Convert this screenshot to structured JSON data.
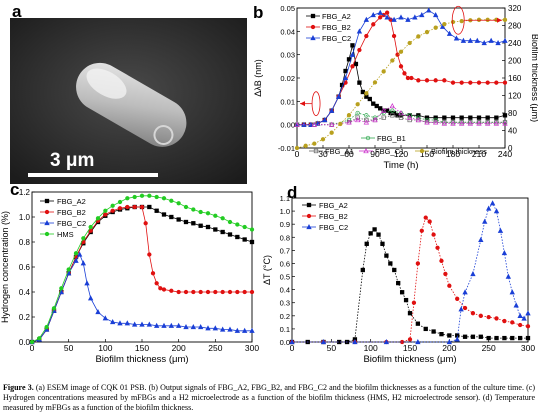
{
  "panels": {
    "a": {
      "label": "a",
      "scale_bar_text": "3 μm"
    },
    "b": {
      "label": "b"
    },
    "c": {
      "label": "c"
    },
    "d": {
      "label": "d"
    }
  },
  "caption": {
    "lead": "Figure 3.",
    "text": " (a) ESEM image of CQK 01 PSB. (b) Output signals of FBG_A2, FBG_B2, and FBG_C2 and the biofilm thicknesses as a function of the culture time. (c) Hydrogen concentrations measured by mFBGs and a H2 microelectrode as a function of the biofilm thickness (HMS, H2 microelectrode sensor). (d) Temperature measured by mFBGs as a function of the biofilm thickness."
  },
  "chart_data": [
    {
      "panel": "b",
      "type": "line",
      "xlabel": "Time (h)",
      "ylabel": "ΔλB (nm)",
      "y2label": "Biofilm thickness (μm)",
      "xlim": [
        0,
        240
      ],
      "ylim": [
        -0.01,
        0.05
      ],
      "y2lim": [
        0,
        320
      ],
      "xticks": [
        0,
        30,
        60,
        90,
        120,
        150,
        180,
        210,
        240
      ],
      "yticks": [
        -0.01,
        0.0,
        0.01,
        0.02,
        0.03,
        0.04,
        0.05
      ],
      "y2ticks": [
        0,
        40,
        80,
        120,
        160,
        200,
        240,
        280,
        320
      ],
      "ytick_labels": [
        "-0.01",
        "0.00",
        "0.01",
        "0.02",
        "0.03",
        "0.04",
        "0.05"
      ],
      "legend_top": [
        "FBG_A2",
        "FBG_B2",
        "FBG_C2"
      ],
      "legend_bottom": [
        "FBG_B1",
        "FBG_A1",
        "FBG_C1",
        "Biofilm thickness"
      ],
      "colors": {
        "A2": "#000000",
        "B2": "#e01010",
        "C2": "#1a3fd6",
        "B1": "#2fa84f",
        "A1": "#666666",
        "C1": "#cc33cc",
        "thick": "#b8a01e"
      },
      "series": [
        {
          "name": "FBG_A2",
          "axis": "left",
          "color": "#000000",
          "marker": "square",
          "x": [
            0,
            8,
            16,
            24,
            32,
            40,
            48,
            52,
            56,
            60,
            64,
            68,
            72,
            76,
            80,
            84,
            88,
            92,
            96,
            100,
            104,
            108,
            112,
            116,
            120,
            130,
            140,
            150,
            160,
            170,
            180,
            190,
            200,
            210,
            220,
            230,
            240
          ],
          "y": [
            0,
            0,
            0,
            0.0005,
            0.002,
            0.006,
            0.012,
            0.017,
            0.023,
            0.028,
            0.034,
            0.026,
            0.018,
            0.014,
            0.012,
            0.011,
            0.009,
            0.008,
            0.007,
            0.006,
            0.006,
            0.005,
            0.005,
            0.004,
            0.004,
            0.004,
            0.004,
            0.003,
            0.003,
            0.003,
            0.003,
            0.003,
            0.003,
            0.003,
            0.003,
            0.003,
            0.004
          ]
        },
        {
          "name": "FBG_B2",
          "axis": "left",
          "color": "#e01010",
          "marker": "circle",
          "x": [
            0,
            8,
            16,
            24,
            32,
            40,
            48,
            56,
            64,
            72,
            80,
            88,
            96,
            100,
            104,
            108,
            112,
            116,
            120,
            124,
            128,
            132,
            140,
            150,
            160,
            170,
            180,
            190,
            200,
            210,
            220,
            230,
            240
          ],
          "y": [
            0,
            0,
            0,
            0.0005,
            0.002,
            0.006,
            0.012,
            0.018,
            0.025,
            0.032,
            0.038,
            0.043,
            0.046,
            0.047,
            0.048,
            0.045,
            0.038,
            0.03,
            0.025,
            0.022,
            0.02,
            0.02,
            0.019,
            0.019,
            0.019,
            0.019,
            0.018,
            0.018,
            0.018,
            0.018,
            0.018,
            0.018,
            0.018
          ]
        },
        {
          "name": "FBG_C2",
          "axis": "left",
          "color": "#1a3fd6",
          "marker": "triangle",
          "x": [
            0,
            8,
            16,
            24,
            32,
            40,
            48,
            56,
            64,
            72,
            80,
            88,
            96,
            104,
            112,
            120,
            128,
            136,
            144,
            152,
            160,
            168,
            176,
            184,
            192,
            200,
            208,
            216,
            224,
            232,
            240
          ],
          "y": [
            0,
            0,
            0,
            0.0005,
            0.002,
            0.006,
            0.012,
            0.02,
            0.03,
            0.04,
            0.045,
            0.047,
            0.048,
            0.046,
            0.045,
            0.046,
            0.045,
            0.046,
            0.047,
            0.049,
            0.047,
            0.042,
            0.039,
            0.037,
            0.036,
            0.036,
            0.036,
            0.035,
            0.036,
            0.035,
            0.036
          ]
        },
        {
          "name": "FBG_B1",
          "axis": "left",
          "color": "#2fa84f",
          "marker": "open-circle",
          "x": [
            0,
            20,
            40,
            60,
            70,
            80,
            90,
            100,
            110,
            120,
            130,
            140,
            150,
            160,
            170,
            180,
            190,
            200,
            210,
            220,
            230,
            240
          ],
          "y": [
            0,
            0,
            0,
            0.002,
            0.005,
            0.004,
            0.003,
            0.005,
            0.006,
            0.005,
            0.004,
            0.003,
            0.002,
            0.002,
            0.001,
            0.001,
            0.001,
            0.001,
            0.001,
            0.001,
            0.001,
            0.001
          ]
        },
        {
          "name": "FBG_A1",
          "axis": "left",
          "color": "#666666",
          "marker": "open-square",
          "x": [
            0,
            20,
            40,
            60,
            70,
            80,
            90,
            100,
            110,
            120,
            130,
            140,
            150,
            160,
            170,
            180,
            190,
            200,
            210,
            220,
            230,
            240
          ],
          "y": [
            0,
            0,
            0,
            0.001,
            0.003,
            0.002,
            0.002,
            0.003,
            0.004,
            0.003,
            0.002,
            0.002,
            0.001,
            0.001,
            0.001,
            0.001,
            0.001,
            0.001,
            0.001,
            0.001,
            0.001,
            0.001
          ]
        },
        {
          "name": "FBG_C1",
          "axis": "left",
          "color": "#cc33cc",
          "marker": "open-triangle",
          "x": [
            0,
            20,
            40,
            60,
            70,
            80,
            90,
            100,
            110,
            120,
            130,
            140,
            150,
            160,
            170,
            180,
            190,
            200,
            210,
            220,
            230,
            240
          ],
          "y": [
            0,
            0,
            0,
            0.001,
            0.002,
            0.001,
            0.002,
            0.006,
            0.008,
            0.005,
            0.003,
            0.002,
            0.001,
            0.001,
            0.0005,
            0.0005,
            0.0005,
            0.0005,
            0.0005,
            0.0005,
            0.0005,
            0.0005
          ]
        },
        {
          "name": "Biofilm thickness",
          "axis": "right",
          "color": "#b8a01e",
          "marker": "circle",
          "x": [
            0,
            10,
            20,
            30,
            40,
            50,
            60,
            70,
            80,
            90,
            100,
            110,
            120,
            130,
            140,
            150,
            160,
            170,
            180,
            190,
            200,
            210,
            220,
            230,
            240
          ],
          "y": [
            0,
            5,
            10,
            20,
            35,
            55,
            75,
            100,
            125,
            150,
            175,
            200,
            220,
            240,
            255,
            265,
            275,
            283,
            288,
            290,
            292,
            293,
            293,
            293,
            293
          ]
        }
      ]
    },
    {
      "panel": "c",
      "type": "line",
      "xlabel": "Biofilm thickness (μm)",
      "ylabel": "Hydrogen concentration (%)",
      "xlim": [
        0,
        300
      ],
      "ylim": [
        0,
        1.2
      ],
      "xticks": [
        0,
        50,
        100,
        150,
        200,
        250,
        300
      ],
      "yticks": [
        0,
        0.2,
        0.4,
        0.6,
        0.8,
        1.0,
        1.2
      ],
      "ytick_labels": [
        "0.0",
        "0.2",
        "0.4",
        "0.6",
        "0.8",
        "1.0",
        "1.2"
      ],
      "legend": [
        "FBG_A2",
        "FBG_B2",
        "FBG_C2",
        "HMS"
      ],
      "series": [
        {
          "name": "FBG_A2",
          "color": "#000000",
          "marker": "square",
          "x": [
            0,
            10,
            20,
            30,
            40,
            50,
            60,
            70,
            80,
            90,
            100,
            110,
            120,
            130,
            140,
            150,
            160,
            170,
            180,
            190,
            200,
            210,
            220,
            230,
            240,
            250,
            260,
            270,
            280,
            290,
            300
          ],
          "y": [
            0,
            0.02,
            0.1,
            0.25,
            0.4,
            0.55,
            0.68,
            0.79,
            0.88,
            0.96,
            1.01,
            1.04,
            1.06,
            1.07,
            1.08,
            1.08,
            1.08,
            1.05,
            1.02,
            1.0,
            0.98,
            0.96,
            0.95,
            0.93,
            0.92,
            0.9,
            0.88,
            0.86,
            0.84,
            0.82,
            0.8
          ]
        },
        {
          "name": "FBG_B2",
          "color": "#e01010",
          "marker": "circle",
          "x": [
            0,
            10,
            20,
            30,
            40,
            50,
            60,
            70,
            80,
            90,
            100,
            110,
            120,
            130,
            140,
            150,
            155,
            160,
            165,
            170,
            175,
            180,
            190,
            200,
            210,
            220,
            230,
            240,
            250,
            260,
            270,
            280,
            290,
            300
          ],
          "y": [
            0,
            0.02,
            0.1,
            0.25,
            0.4,
            0.55,
            0.68,
            0.8,
            0.89,
            0.97,
            1.02,
            1.05,
            1.07,
            1.08,
            1.08,
            1.08,
            0.95,
            0.7,
            0.55,
            0.47,
            0.43,
            0.42,
            0.41,
            0.4,
            0.4,
            0.4,
            0.4,
            0.4,
            0.4,
            0.4,
            0.4,
            0.4,
            0.4,
            0.4
          ]
        },
        {
          "name": "FBG_C2",
          "color": "#1a3fd6",
          "marker": "triangle",
          "x": [
            0,
            10,
            20,
            30,
            40,
            50,
            60,
            65,
            70,
            75,
            80,
            90,
            100,
            110,
            120,
            130,
            140,
            150,
            160,
            170,
            180,
            190,
            200,
            210,
            220,
            230,
            240,
            250,
            260,
            270,
            280,
            290,
            300
          ],
          "y": [
            0,
            0.02,
            0.1,
            0.25,
            0.4,
            0.55,
            0.65,
            0.7,
            0.63,
            0.47,
            0.35,
            0.24,
            0.19,
            0.16,
            0.15,
            0.15,
            0.14,
            0.14,
            0.14,
            0.13,
            0.13,
            0.13,
            0.13,
            0.12,
            0.12,
            0.12,
            0.11,
            0.11,
            0.1,
            0.1,
            0.09,
            0.09,
            0.09
          ]
        },
        {
          "name": "HMS",
          "color": "#22cc22",
          "marker": "circle",
          "x": [
            0,
            10,
            20,
            30,
            40,
            50,
            60,
            70,
            80,
            90,
            100,
            110,
            120,
            130,
            140,
            150,
            160,
            170,
            180,
            190,
            200,
            210,
            220,
            230,
            240,
            250,
            260,
            270,
            280,
            290,
            300
          ],
          "y": [
            0,
            0.03,
            0.12,
            0.27,
            0.43,
            0.58,
            0.71,
            0.83,
            0.92,
            0.99,
            1.05,
            1.09,
            1.12,
            1.15,
            1.16,
            1.17,
            1.17,
            1.16,
            1.15,
            1.13,
            1.11,
            1.08,
            1.06,
            1.04,
            1.03,
            1.01,
            0.99,
            0.96,
            0.94,
            0.92,
            0.9
          ]
        }
      ]
    },
    {
      "panel": "d",
      "type": "line",
      "xlabel": "Biofilm thickness (μm)",
      "ylabel": "ΔT (°C)",
      "xlim": [
        0,
        300
      ],
      "ylim": [
        0,
        1.1
      ],
      "xticks": [
        0,
        50,
        100,
        150,
        200,
        250,
        300
      ],
      "yticks": [
        0,
        0.1,
        0.2,
        0.3,
        0.4,
        0.5,
        0.6,
        0.7,
        0.8,
        0.9,
        1.0,
        1.1
      ],
      "ytick_labels": [
        "0.0",
        "0.1",
        "0.2",
        "0.3",
        "0.4",
        "0.5",
        "0.6",
        "0.7",
        "0.8",
        "0.9",
        "1.0",
        "1.1"
      ],
      "legend": [
        "FBG_A2",
        "FBG_B2",
        "FBG_C2"
      ],
      "series": [
        {
          "name": "FBG_A2",
          "color": "#000000",
          "marker": "square",
          "x": [
            0,
            20,
            40,
            60,
            70,
            80,
            90,
            95,
            100,
            105,
            110,
            115,
            120,
            125,
            130,
            135,
            140,
            145,
            150,
            160,
            170,
            180,
            190,
            200,
            210,
            220,
            230,
            240,
            250,
            260,
            270,
            280,
            290,
            300
          ],
          "y": [
            0,
            0,
            0,
            0,
            0,
            0.02,
            0.55,
            0.75,
            0.83,
            0.86,
            0.82,
            0.75,
            0.66,
            0.6,
            0.55,
            0.45,
            0.38,
            0.32,
            0.22,
            0.14,
            0.1,
            0.08,
            0.06,
            0.05,
            0.05,
            0.04,
            0.04,
            0.04,
            0.03,
            0.03,
            0.03,
            0.03,
            0.03,
            0.03
          ]
        },
        {
          "name": "FBG_B2",
          "color": "#e01010",
          "marker": "circle",
          "x": [
            0,
            40,
            80,
            120,
            140,
            150,
            155,
            160,
            165,
            170,
            175,
            180,
            185,
            190,
            195,
            200,
            210,
            220,
            230,
            240,
            250,
            260,
            270,
            280,
            290,
            300
          ],
          "y": [
            0,
            0,
            0,
            0,
            0,
            0.02,
            0.3,
            0.6,
            0.85,
            0.95,
            0.92,
            0.82,
            0.72,
            0.62,
            0.52,
            0.43,
            0.33,
            0.26,
            0.22,
            0.2,
            0.19,
            0.18,
            0.16,
            0.15,
            0.13,
            0.12
          ]
        },
        {
          "name": "FBG_C2",
          "color": "#1a3fd6",
          "marker": "triangle",
          "x": [
            0,
            40,
            80,
            120,
            160,
            200,
            210,
            215,
            220,
            230,
            240,
            245,
            250,
            255,
            260,
            265,
            270,
            275,
            280,
            285,
            290,
            295,
            300
          ],
          "y": [
            0,
            0,
            0,
            0,
            0,
            0,
            0.02,
            0.25,
            0.38,
            0.52,
            0.78,
            0.92,
            1.02,
            1.06,
            1.0,
            0.85,
            0.68,
            0.5,
            0.38,
            0.28,
            0.2,
            0.18,
            0.22
          ]
        }
      ]
    }
  ]
}
